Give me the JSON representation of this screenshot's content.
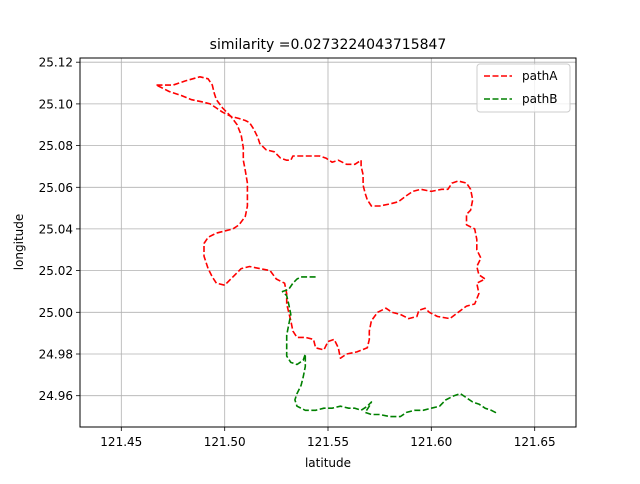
{
  "chart_data": {
    "type": "line",
    "title": "similarity =0.0273224043715847",
    "xlabel": "latitude",
    "ylabel": "longitude",
    "xlim": [
      121.43,
      121.67
    ],
    "ylim": [
      24.945,
      25.122
    ],
    "xticks": [
      121.45,
      121.5,
      121.55,
      121.6,
      121.65
    ],
    "xtick_labels": [
      "121.45",
      "121.50",
      "121.55",
      "121.60",
      "121.65"
    ],
    "yticks": [
      24.96,
      24.98,
      25.0,
      25.02,
      25.04,
      25.06,
      25.08,
      25.1,
      25.12
    ],
    "ytick_labels": [
      "24.96",
      "24.98",
      "25.00",
      "25.02",
      "25.04",
      "25.06",
      "25.08",
      "25.10",
      "25.12"
    ],
    "grid": true,
    "legend_position": "top-right",
    "series": [
      {
        "name": "pathA",
        "color": "#ff0000",
        "style": "dashed",
        "points": [
          [
            121.467,
            25.109
          ],
          [
            121.475,
            25.109
          ],
          [
            121.481,
            25.111
          ],
          [
            121.488,
            25.113
          ],
          [
            121.492,
            25.112
          ],
          [
            121.494,
            25.109
          ],
          [
            121.495,
            25.105
          ],
          [
            121.496,
            25.102
          ],
          [
            121.499,
            25.098
          ],
          [
            121.503,
            25.094
          ],
          [
            121.507,
            25.093
          ],
          [
            121.51,
            25.092
          ],
          [
            121.512,
            25.091
          ],
          [
            121.514,
            25.088
          ],
          [
            121.516,
            25.084
          ],
          [
            121.517,
            25.081
          ],
          [
            121.52,
            25.078
          ],
          [
            121.524,
            25.077
          ],
          [
            121.527,
            25.074
          ],
          [
            121.53,
            25.073
          ],
          [
            121.532,
            25.073
          ],
          [
            121.533,
            25.075
          ],
          [
            121.537,
            25.075
          ],
          [
            121.541,
            25.075
          ],
          [
            121.546,
            25.075
          ],
          [
            121.549,
            25.074
          ],
          [
            121.552,
            25.072
          ],
          [
            121.555,
            25.073
          ],
          [
            121.559,
            25.071
          ],
          [
            121.563,
            25.071
          ],
          [
            121.566,
            25.073
          ],
          [
            121.566,
            25.07
          ],
          [
            121.567,
            25.066
          ],
          [
            121.567,
            25.061
          ],
          [
            121.568,
            25.057
          ],
          [
            121.569,
            25.054
          ],
          [
            121.571,
            25.051
          ],
          [
            121.575,
            25.051
          ],
          [
            121.58,
            25.052
          ],
          [
            121.584,
            25.053
          ],
          [
            121.588,
            25.056
          ],
          [
            121.591,
            25.058
          ],
          [
            121.595,
            25.059
          ],
          [
            121.6,
            25.058
          ],
          [
            121.605,
            25.059
          ],
          [
            121.608,
            25.059
          ],
          [
            121.61,
            25.062
          ],
          [
            121.613,
            25.063
          ],
          [
            121.617,
            25.062
          ],
          [
            121.619,
            25.059
          ],
          [
            121.62,
            25.054
          ],
          [
            121.619,
            25.049
          ],
          [
            121.617,
            25.047
          ],
          [
            121.617,
            25.042
          ],
          [
            121.621,
            25.04
          ],
          [
            121.622,
            25.035
          ],
          [
            121.622,
            25.03
          ],
          [
            121.624,
            25.026
          ],
          [
            121.622,
            25.022
          ],
          [
            121.623,
            25.018
          ],
          [
            121.626,
            25.016
          ],
          [
            121.622,
            25.014
          ],
          [
            121.623,
            25.009
          ],
          [
            121.621,
            25.004
          ],
          [
            121.617,
            25.003
          ],
          [
            121.613,
            25.0
          ],
          [
            121.609,
            24.997
          ],
          [
            121.603,
            24.998
          ],
          [
            121.599,
            25.0
          ],
          [
            121.597,
            25.002
          ],
          [
            121.594,
            25.001
          ],
          [
            121.593,
            24.998
          ],
          [
            121.589,
            24.997
          ],
          [
            121.585,
            24.999
          ],
          [
            121.581,
            25.0
          ],
          [
            121.578,
            25.002
          ],
          [
            121.574,
            25.0
          ],
          [
            121.571,
            24.996
          ],
          [
            121.57,
            24.991
          ],
          [
            121.57,
            24.987
          ],
          [
            121.569,
            24.983
          ],
          [
            121.564,
            24.981
          ],
          [
            121.559,
            24.98
          ],
          [
            121.556,
            24.978
          ],
          [
            121.555,
            24.983
          ],
          [
            121.553,
            24.987
          ],
          [
            121.55,
            24.986
          ],
          [
            121.548,
            24.982
          ],
          [
            121.544,
            24.983
          ],
          [
            121.543,
            24.987
          ],
          [
            121.539,
            24.988
          ],
          [
            121.535,
            24.988
          ],
          [
            121.533,
            24.991
          ],
          [
            121.532,
            24.996
          ],
          [
            121.531,
            25.0
          ],
          [
            121.53,
            25.004
          ],
          [
            121.53,
            25.009
          ],
          [
            121.529,
            25.014
          ],
          [
            121.525,
            25.016
          ],
          [
            121.522,
            25.02
          ],
          [
            121.517,
            25.021
          ],
          [
            121.512,
            25.022
          ],
          [
            121.508,
            25.021
          ],
          [
            121.504,
            25.017
          ],
          [
            121.5,
            25.013
          ],
          [
            121.496,
            25.014
          ],
          [
            121.494,
            25.017
          ],
          [
            121.492,
            25.021
          ],
          [
            121.49,
            25.027
          ],
          [
            121.49,
            25.033
          ],
          [
            121.492,
            25.036
          ],
          [
            121.496,
            25.038
          ],
          [
            121.5,
            25.039
          ],
          [
            121.504,
            25.04
          ],
          [
            121.507,
            25.042
          ],
          [
            121.51,
            25.046
          ],
          [
            121.511,
            25.051
          ],
          [
            121.511,
            25.056
          ],
          [
            121.511,
            25.062
          ],
          [
            121.51,
            25.068
          ],
          [
            121.509,
            25.073
          ],
          [
            121.509,
            25.079
          ],
          [
            121.508,
            25.085
          ],
          [
            121.506,
            25.09
          ],
          [
            121.503,
            25.094
          ],
          [
            121.499,
            25.096
          ],
          [
            121.496,
            25.098
          ],
          [
            121.493,
            25.1
          ],
          [
            121.489,
            25.101
          ],
          [
            121.484,
            25.102
          ],
          [
            121.479,
            25.104
          ],
          [
            121.473,
            25.106
          ],
          [
            121.467,
            25.109
          ]
        ]
      },
      {
        "name": "pathB",
        "color": "#008000",
        "style": "dashed",
        "points": [
          [
            121.544,
            25.017
          ],
          [
            121.54,
            25.017
          ],
          [
            121.537,
            25.017
          ],
          [
            121.535,
            25.016
          ],
          [
            121.533,
            25.014
          ],
          [
            121.531,
            25.011
          ],
          [
            121.528,
            25.01
          ],
          [
            121.53,
            25.008
          ],
          [
            121.531,
            25.004
          ],
          [
            121.532,
            24.999
          ],
          [
            121.531,
            24.994
          ],
          [
            121.53,
            24.989
          ],
          [
            121.53,
            24.984
          ],
          [
            121.53,
            24.979
          ],
          [
            121.532,
            24.976
          ],
          [
            121.535,
            24.975
          ],
          [
            121.538,
            24.977
          ],
          [
            121.539,
            24.98
          ],
          [
            121.539,
            24.974
          ],
          [
            121.538,
            24.969
          ],
          [
            121.537,
            24.965
          ],
          [
            121.535,
            24.961
          ],
          [
            121.534,
            24.958
          ],
          [
            121.535,
            24.955
          ],
          [
            121.539,
            24.953
          ],
          [
            121.544,
            24.953
          ],
          [
            121.548,
            24.954
          ],
          [
            121.552,
            24.954
          ],
          [
            121.556,
            24.955
          ],
          [
            121.56,
            24.954
          ],
          [
            121.563,
            24.954
          ],
          [
            121.566,
            24.953
          ],
          [
            121.569,
            24.955
          ],
          [
            121.571,
            24.957
          ],
          [
            121.57,
            24.955
          ],
          [
            121.568,
            24.952
          ],
          [
            121.571,
            24.951
          ],
          [
            121.575,
            24.951
          ],
          [
            121.58,
            24.95
          ],
          [
            121.585,
            24.95
          ],
          [
            121.588,
            24.952
          ],
          [
            121.592,
            24.953
          ],
          [
            121.596,
            24.953
          ],
          [
            121.6,
            24.954
          ],
          [
            121.604,
            24.955
          ],
          [
            121.607,
            24.958
          ],
          [
            121.611,
            24.96
          ],
          [
            121.614,
            24.961
          ],
          [
            121.617,
            24.959
          ],
          [
            121.62,
            24.957
          ],
          [
            121.623,
            24.956
          ],
          [
            121.626,
            24.954
          ],
          [
            121.629,
            24.953
          ],
          [
            121.631,
            24.952
          ],
          [
            121.629,
            24.953
          ]
        ]
      }
    ]
  }
}
